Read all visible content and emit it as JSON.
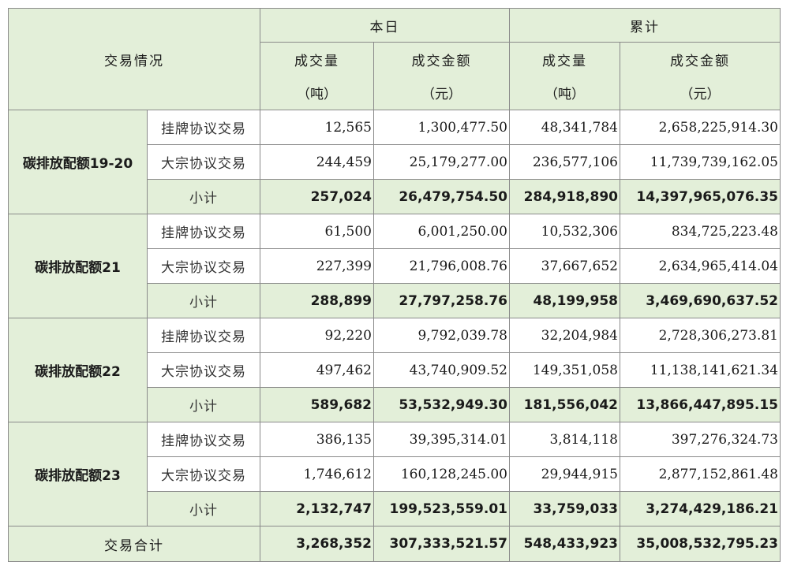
{
  "header": {
    "corner": "交易情况",
    "today": "本日",
    "cumulative": "累计",
    "volume": "成交量",
    "amount": "成交金额",
    "volume_unit": "（吨）",
    "amount_unit": "（元）"
  },
  "groups": [
    {
      "name": "碳排放配额19-20",
      "rows": [
        {
          "type": "挂牌协议交易",
          "d_vol": "12,565",
          "d_amt": "1,300,477.50",
          "c_vol": "48,341,784",
          "c_amt": "2,658,225,914.30"
        },
        {
          "type": "大宗协议交易",
          "d_vol": "244,459",
          "d_amt": "25,179,277.00",
          "c_vol": "236,577,106",
          "c_amt": "11,739,739,162.05"
        }
      ],
      "subtotal": {
        "type": "小计",
        "d_vol": "257,024",
        "d_amt": "26,479,754.50",
        "c_vol": "284,918,890",
        "c_amt": "14,397,965,076.35"
      }
    },
    {
      "name": "碳排放配额21",
      "rows": [
        {
          "type": "挂牌协议交易",
          "d_vol": "61,500",
          "d_amt": "6,001,250.00",
          "c_vol": "10,532,306",
          "c_amt": "834,725,223.48"
        },
        {
          "type": "大宗协议交易",
          "d_vol": "227,399",
          "d_amt": "21,796,008.76",
          "c_vol": "37,667,652",
          "c_amt": "2,634,965,414.04"
        }
      ],
      "subtotal": {
        "type": "小计",
        "d_vol": "288,899",
        "d_amt": "27,797,258.76",
        "c_vol": "48,199,958",
        "c_amt": "3,469,690,637.52"
      }
    },
    {
      "name": "碳排放配额22",
      "rows": [
        {
          "type": "挂牌协议交易",
          "d_vol": "92,220",
          "d_amt": "9,792,039.78",
          "c_vol": "32,204,984",
          "c_amt": "2,728,306,273.81"
        },
        {
          "type": "大宗协议交易",
          "d_vol": "497,462",
          "d_amt": "43,740,909.52",
          "c_vol": "149,351,058",
          "c_amt": "11,138,141,621.34"
        }
      ],
      "subtotal": {
        "type": "小计",
        "d_vol": "589,682",
        "d_amt": "53,532,949.30",
        "c_vol": "181,556,042",
        "c_amt": "13,866,447,895.15"
      }
    },
    {
      "name": "碳排放配额23",
      "rows": [
        {
          "type": "挂牌协议交易",
          "d_vol": "386,135",
          "d_amt": "39,395,314.01",
          "c_vol": "3,814,118",
          "c_amt": "397,276,324.73"
        },
        {
          "type": "大宗协议交易",
          "d_vol": "1,746,612",
          "d_amt": "160,128,245.00",
          "c_vol": "29,944,915",
          "c_amt": "2,877,152,861.48"
        }
      ],
      "subtotal": {
        "type": "小计",
        "d_vol": "2,132,747",
        "d_amt": "199,523,559.01",
        "c_vol": "33,759,033",
        "c_amt": "3,274,429,186.21"
      }
    }
  ],
  "total": {
    "label": "交易合计",
    "d_vol": "3,268,352",
    "d_amt": "307,333,521.57",
    "c_vol": "548,433,923",
    "c_amt": "35,008,532,795.23"
  }
}
